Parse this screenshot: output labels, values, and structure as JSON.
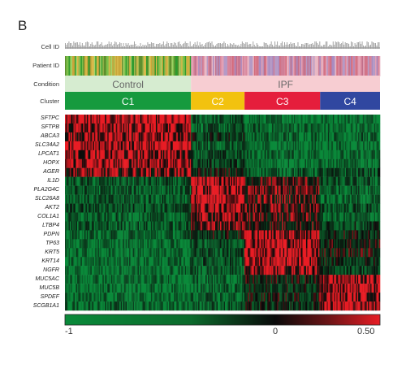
{
  "panel_label": "B",
  "track_labels": {
    "cell_id": "Cell ID",
    "patient_id": "Patient ID",
    "condition": "Condition",
    "cluster": "Cluster"
  },
  "colors": {
    "control": "#d6ecd0",
    "ipf": "#f7cdd2",
    "c1": "#169a3e",
    "c2": "#f2c20f",
    "c3": "#e51e3c",
    "c4": "#3047a0",
    "heat_low": "#0a8a3a",
    "heat_mid": "#0a0a0a",
    "heat_high": "#e81c24"
  },
  "chart_data": {
    "type": "heatmap",
    "title": "",
    "conditions": [
      {
        "label": "Control",
        "cell_fraction": 0.4
      },
      {
        "label": "IPF",
        "cell_fraction": 0.6
      }
    ],
    "clusters": [
      {
        "label": "C1",
        "cell_fraction": 0.4
      },
      {
        "label": "C2",
        "cell_fraction": 0.17
      },
      {
        "label": "C3",
        "cell_fraction": 0.24
      },
      {
        "label": "C4",
        "cell_fraction": 0.19
      }
    ],
    "genes": [
      "SFTPC",
      "SFTPB",
      "ABCA3",
      "SLC34A2",
      "LPCAT1",
      "HOPX",
      "AGER",
      "IL1D",
      "PLA2G4C",
      "SLC26A8",
      "AKT2",
      "COL1A1",
      "LTBP4",
      "PDPN",
      "TP63",
      "KRT5",
      "KRT14",
      "NGFR",
      "MUC5AC",
      "MUC5B",
      "SPDEF",
      "SCGB1A1"
    ],
    "mean_expression_by_cluster": [
      [
        0.4,
        -0.6,
        -0.8,
        -0.8
      ],
      [
        0.35,
        -0.6,
        -0.7,
        -0.8
      ],
      [
        0.3,
        -0.3,
        -0.7,
        -0.7
      ],
      [
        0.4,
        -0.6,
        -0.8,
        -0.8
      ],
      [
        0.3,
        -0.5,
        -0.7,
        -0.8
      ],
      [
        0.35,
        -0.4,
        -0.8,
        -0.8
      ],
      [
        0.2,
        -0.2,
        -0.6,
        -0.5
      ],
      [
        -0.6,
        0.35,
        0.05,
        -0.6
      ],
      [
        -0.6,
        0.35,
        0.1,
        -0.6
      ],
      [
        -0.6,
        0.4,
        0.1,
        -0.7
      ],
      [
        -0.5,
        0.35,
        0.1,
        -0.5
      ],
      [
        -0.7,
        0.25,
        0.05,
        -0.7
      ],
      [
        -0.6,
        0.2,
        0.0,
        -0.4
      ],
      [
        -0.7,
        -0.2,
        0.35,
        -0.2
      ],
      [
        -0.8,
        -0.5,
        0.4,
        -0.1
      ],
      [
        -0.8,
        -0.5,
        0.4,
        -0.1
      ],
      [
        -0.8,
        -0.5,
        0.35,
        -0.3
      ],
      [
        -0.8,
        -0.6,
        0.3,
        -0.4
      ],
      [
        -0.8,
        -0.7,
        -0.2,
        0.35
      ],
      [
        -0.8,
        -0.7,
        -0.3,
        0.4
      ],
      [
        -0.8,
        -0.7,
        -0.2,
        0.35
      ],
      [
        -0.7,
        -0.6,
        -0.3,
        0.4
      ]
    ],
    "colorbar": {
      "min": -1,
      "mid": 0,
      "max": 0.5,
      "tick_labels": [
        "-1",
        "0",
        "0.50"
      ]
    }
  }
}
